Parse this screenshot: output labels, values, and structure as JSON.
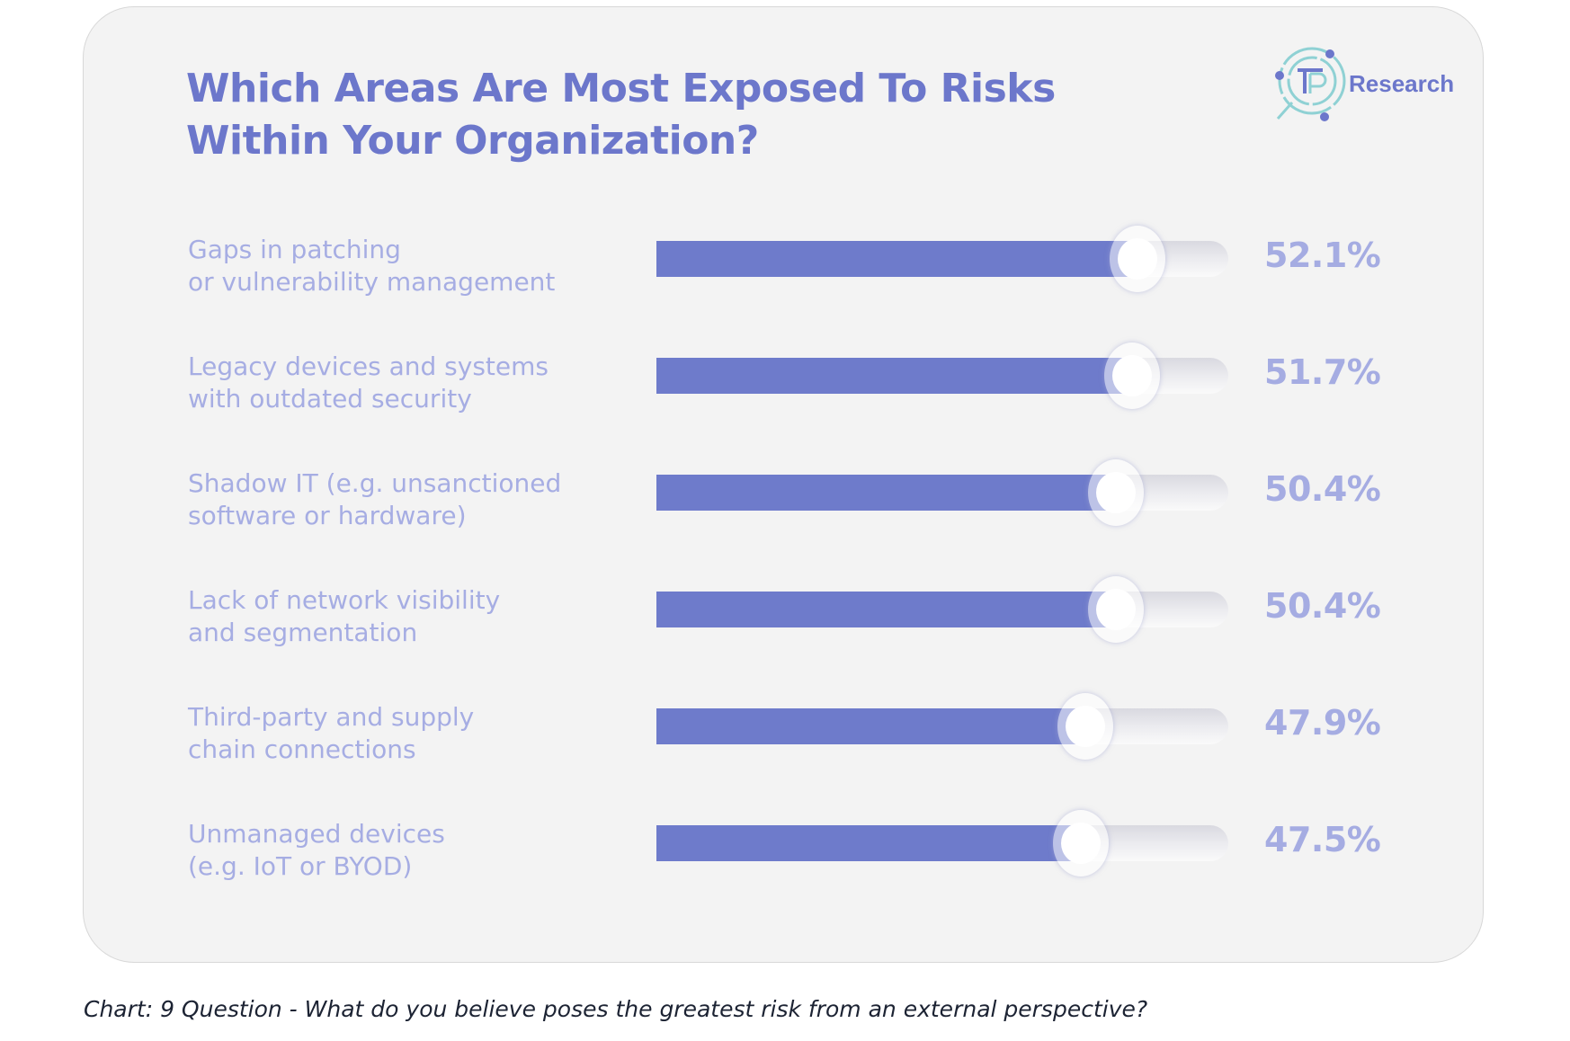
{
  "header": {
    "title_lines": [
      "Which Areas Are Most Exposed To Risks",
      "Within Your Organization?"
    ],
    "logo_text": "Research",
    "logo_icon": "tp-magnifier-logo-icon"
  },
  "colors": {
    "accent": "#6c77cb",
    "bar_fill": "#6e7bcb",
    "label": "#a6ade3",
    "value": "#a5ace2",
    "card_bg": "#f3f3f3",
    "logo_ring": "#8fd1d4"
  },
  "chart_data": {
    "type": "bar",
    "orientation": "horizontal",
    "title": "Which Areas Are Most Exposed To Risks Within Your Organization?",
    "categories": [
      "Gaps in patching or vulnerability management",
      "Legacy devices and systems with outdated security",
      "Shadow IT (e.g. unsanctioned software or hardware)",
      "Lack of network visibility and segmentation",
      "Third-party and supply chain connections",
      "Unmanaged devices (e.g. IoT or BYOD)"
    ],
    "category_lines": [
      [
        "Gaps in patching",
        "or vulnerability management"
      ],
      [
        "Legacy devices and systems",
        "with outdated security"
      ],
      [
        "Shadow IT (e.g. unsanctioned",
        "software or hardware)"
      ],
      [
        "Lack of network visibility",
        "and segmentation"
      ],
      [
        "Third-party and supply",
        "chain connections"
      ],
      [
        "Unmanaged devices",
        "(e.g. IoT or  BYOD)"
      ]
    ],
    "values": [
      52.1,
      51.7,
      50.4,
      50.4,
      47.9,
      47.5
    ],
    "value_labels": [
      "52.1%",
      "51.7%",
      "50.4%",
      "50.4%",
      "47.9%",
      "47.5%"
    ],
    "unit": "%",
    "xlabel": "",
    "ylabel": "",
    "grid": false,
    "legend": "none"
  },
  "caption": "Chart: 9 Question - What do you believe poses the greatest risk from an external perspective?"
}
